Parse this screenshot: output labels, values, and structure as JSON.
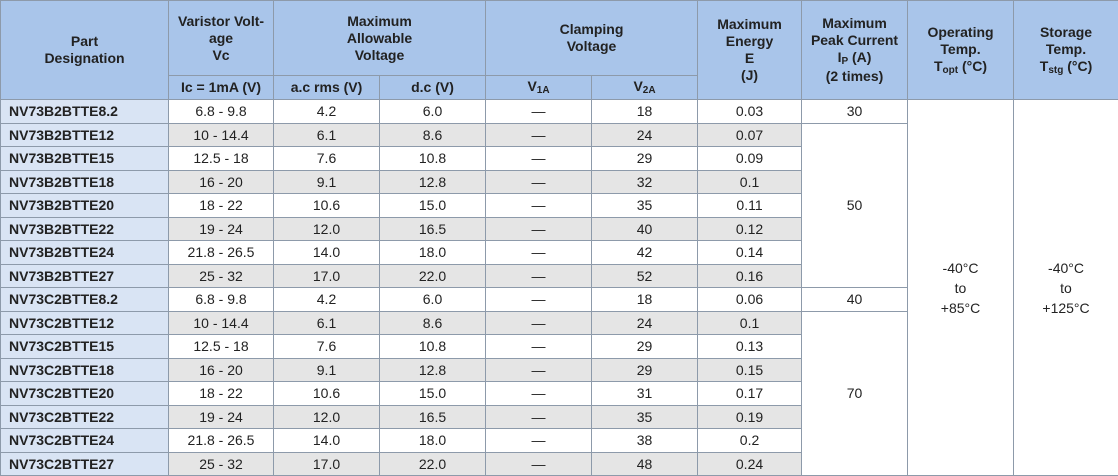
{
  "header": {
    "part": [
      "Part",
      "Designation"
    ],
    "varistor": [
      "Varistor Volt-",
      "age",
      "Vc"
    ],
    "varistor_sub": "Ic = 1mA (V)",
    "allowable": [
      "Maximum",
      "Allowable",
      "Voltage"
    ],
    "ac": "a.c rms (V)",
    "dc": "d.c (V)",
    "clamping": [
      "Clamping",
      "Voltage"
    ],
    "v1a": {
      "symbol": "V",
      "subscript": "1A"
    },
    "v2a": {
      "symbol": "V",
      "subscript": "2A"
    },
    "energy": [
      "Maximum",
      "Energy",
      "E",
      "(J)"
    ],
    "peak_current": [
      "Maximum",
      "Peak Current",
      {
        "symbol": "I",
        "subscript": "P",
        "unit": " (A)"
      },
      "(2 times)"
    ],
    "operating": [
      "Operating",
      "Temp.",
      {
        "symbol": "T",
        "subscript": "opt",
        "unit": " (°C)"
      }
    ],
    "storage": [
      "Storage",
      "Temp.",
      {
        "symbol": "T",
        "subscript": "stg",
        "unit": " (°C)"
      }
    ]
  },
  "table": {
    "rows": [
      [
        "NV73B2BTTE8.2",
        "6.8 - 9.8",
        "4.2",
        "6.0",
        "—",
        "18",
        "0.03"
      ],
      [
        "NV73B2BTTE12",
        "10 - 14.4",
        "6.1",
        "8.6",
        "—",
        "24",
        "0.07"
      ],
      [
        "NV73B2BTTE15",
        "12.5 - 18",
        "7.6",
        "10.8",
        "—",
        "29",
        "0.09"
      ],
      [
        "NV73B2BTTE18",
        "16 - 20",
        "9.1",
        "12.8",
        "—",
        "32",
        "0.1"
      ],
      [
        "NV73B2BTTE20",
        "18 - 22",
        "10.6",
        "15.0",
        "—",
        "35",
        "0.11"
      ],
      [
        "NV73B2BTTE22",
        "19 - 24",
        "12.0",
        "16.5",
        "—",
        "40",
        "0.12"
      ],
      [
        "NV73B2BTTE24",
        "21.8 - 26.5",
        "14.0",
        "18.0",
        "—",
        "42",
        "0.14"
      ],
      [
        "NV73B2BTTE27",
        "25 - 32",
        "17.0",
        "22.0",
        "—",
        "52",
        "0.16"
      ],
      [
        "NV73C2BTTE8.2",
        "6.8 - 9.8",
        "4.2",
        "6.0",
        "—",
        "18",
        "0.06"
      ],
      [
        "NV73C2BTTE12",
        "10 - 14.4",
        "6.1",
        "8.6",
        "—",
        "24",
        "0.1"
      ],
      [
        "NV73C2BTTE15",
        "12.5 - 18",
        "7.6",
        "10.8",
        "—",
        "29",
        "0.13"
      ],
      [
        "NV73C2BTTE18",
        "16 - 20",
        "9.1",
        "12.8",
        "—",
        "29",
        "0.15"
      ],
      [
        "NV73C2BTTE20",
        "18 - 22",
        "10.6",
        "15.0",
        "—",
        "31",
        "0.17"
      ],
      [
        "NV73C2BTTE22",
        "19 - 24",
        "12.0",
        "16.5",
        "—",
        "35",
        "0.19"
      ],
      [
        "NV73C2BTTE24",
        "21.8 - 26.5",
        "14.0",
        "18.0",
        "—",
        "38",
        "0.2"
      ],
      [
        "NV73C2BTTE27",
        "25 - 32",
        "17.0",
        "22.0",
        "—",
        "48",
        "0.24"
      ]
    ],
    "peak_current": [
      "30",
      "50",
      "40",
      "70"
    ],
    "operating": [
      "-40°C",
      "to",
      "+85°C"
    ],
    "storage": [
      "-40°C",
      "to",
      "+125°C"
    ]
  }
}
